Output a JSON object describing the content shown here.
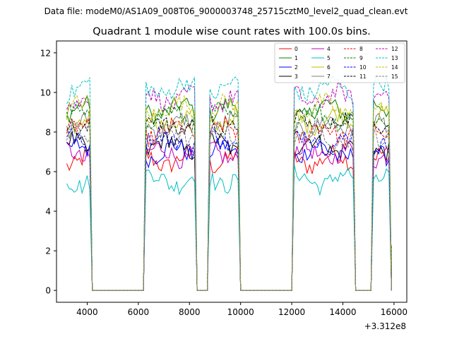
{
  "suptitle": "Data file: modeM0/AS1A09_008T06_9000003748_25715cztM0_level2_quad_clean.evt",
  "chart_data": {
    "type": "line",
    "title": "Quadrant 1 module wise count rates with 100.0s bins.",
    "xlabel": "",
    "ylabel": "",
    "x_offset_label": "+3.312e8",
    "xlim": [
      2800,
      16500
    ],
    "ylim": [
      -0.6,
      12.6
    ],
    "xticks": [
      4000,
      6000,
      8000,
      10000,
      12000,
      14000,
      16000
    ],
    "yticks": [
      0,
      2,
      4,
      6,
      8,
      10,
      12
    ],
    "bin_width": 100,
    "segments": [
      [
        3200,
        4100
      ],
      [
        6300,
        8200
      ],
      [
        8800,
        9900
      ],
      [
        12100,
        14400
      ],
      [
        15200,
        15800
      ]
    ],
    "gaps": [
      [
        4200,
        6200
      ],
      [
        8300,
        8700
      ],
      [
        10000,
        12000
      ],
      [
        14500,
        15100
      ]
    ],
    "legend": {
      "location": "upper right",
      "columns": 4
    },
    "series": [
      {
        "name": "0",
        "color": "#ff0000",
        "dash": "solid",
        "level": 6.6
      },
      {
        "name": "1",
        "color": "#008000",
        "dash": "solid",
        "level": 9.1
      },
      {
        "name": "2",
        "color": "#0000ff",
        "dash": "solid",
        "level": 7.0
      },
      {
        "name": "3",
        "color": "#000000",
        "dash": "solid",
        "level": 7.3
      },
      {
        "name": "4",
        "color": "#bf00bf",
        "dash": "solid",
        "level": 6.9
      },
      {
        "name": "5",
        "color": "#00bfbf",
        "dash": "solid",
        "level": 5.6
      },
      {
        "name": "6",
        "color": "#bfbf00",
        "dash": "solid",
        "level": 8.6
      },
      {
        "name": "7",
        "color": "#808080",
        "dash": "solid",
        "level": 8.3
      },
      {
        "name": "8",
        "color": "#ff0000",
        "dash": "dashed",
        "level": 8.0
      },
      {
        "name": "9",
        "color": "#008000",
        "dash": "dashed",
        "level": 8.8
      },
      {
        "name": "10",
        "color": "#0000ff",
        "dash": "dashed",
        "level": 7.6
      },
      {
        "name": "11",
        "color": "#000000",
        "dash": "dashed",
        "level": 8.4
      },
      {
        "name": "12",
        "color": "#bf00bf",
        "dash": "dashed",
        "level": 9.7
      },
      {
        "name": "13",
        "color": "#00bfbf",
        "dash": "dashed",
        "level": 10.2
      },
      {
        "name": "14",
        "color": "#bfbf00",
        "dash": "dashed",
        "level": 9.2
      },
      {
        "name": "15",
        "color": "#808080",
        "dash": "dashed",
        "level": 7.8
      }
    ]
  }
}
